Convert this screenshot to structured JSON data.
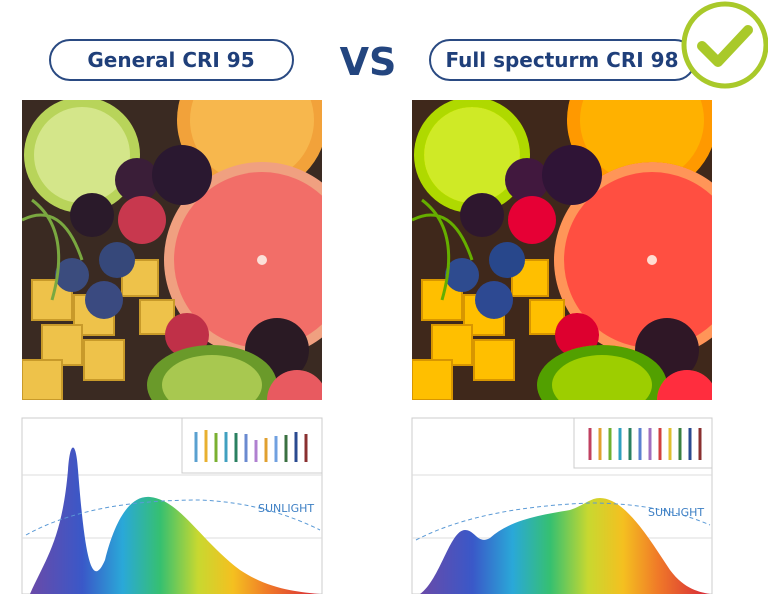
{
  "left": {
    "label": "General CRI 95",
    "sunlight": "SUNLIGHT"
  },
  "vs": "VS",
  "right": {
    "label": "Full specturm CRI 98",
    "sunlight": "SUNLIGHT"
  }
}
